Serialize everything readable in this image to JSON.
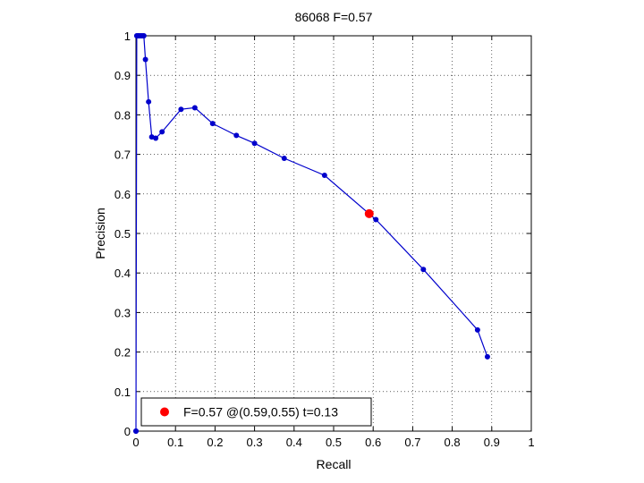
{
  "chart_data": {
    "type": "line",
    "title": "86068 F=0.57",
    "xlabel": "Recall",
    "ylabel": "Precision",
    "xlim": [
      0,
      1
    ],
    "ylim": [
      0,
      1
    ],
    "xticks": [
      "0",
      "0.1",
      "0.2",
      "0.3",
      "0.4",
      "0.5",
      "0.6",
      "0.7",
      "0.8",
      "0.9",
      "1"
    ],
    "yticks": [
      "0",
      "0.1",
      "0.2",
      "0.3",
      "0.4",
      "0.5",
      "0.6",
      "0.7",
      "0.8",
      "0.9",
      "1"
    ],
    "grid": true,
    "legend_position": "bottom-left",
    "series": [
      {
        "color": "#0000cc",
        "marker": "dot",
        "x": [
          0.0,
          0.0,
          0.002,
          0.005,
          0.008,
          0.012,
          0.016,
          0.02,
          0.024,
          0.032,
          0.04,
          0.05,
          0.066,
          0.114,
          0.149,
          0.194,
          0.254,
          0.3,
          0.375,
          0.477,
          0.607,
          0.727,
          0.864,
          0.889
        ],
        "y": [
          0.0,
          0.0,
          1.0,
          1.0,
          1.0,
          1.0,
          1.0,
          1.0,
          0.94,
          0.833,
          0.744,
          0.741,
          0.757,
          0.814,
          0.818,
          0.778,
          0.748,
          0.728,
          0.69,
          0.647,
          0.535,
          0.409,
          0.256,
          0.188
        ]
      }
    ],
    "best_point": {
      "label": "F=0.57 @(0.59,0.55) t=0.13",
      "x": 0.59,
      "y": 0.55,
      "color": "#ff0000"
    }
  }
}
